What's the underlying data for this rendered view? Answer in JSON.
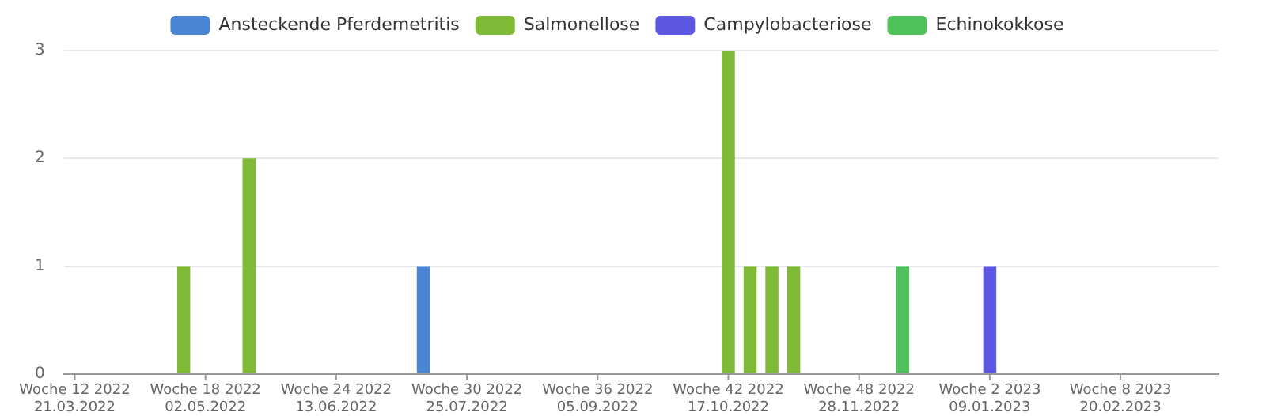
{
  "chart_data": {
    "type": "bar",
    "stacked": true,
    "legend": "top",
    "grid": "y",
    "categories": [
      "Woche 12 2022\n21.03.2022",
      null,
      null,
      null,
      null,
      null,
      "Woche 18 2022\n02.05.2022",
      null,
      null,
      null,
      null,
      null,
      "Woche 24 2022\n13.06.2022",
      null,
      null,
      null,
      null,
      null,
      "Woche 30 2022\n25.07.2022",
      null,
      null,
      null,
      null,
      null,
      "Woche 36 2022\n05.09.2022",
      null,
      null,
      null,
      null,
      null,
      "Woche 42 2022\n17.10.2022",
      null,
      null,
      null,
      null,
      null,
      "Woche 48 2022\n28.11.2022",
      null,
      null,
      null,
      null,
      null,
      "Woche 2 2023\n09.01.2023",
      null,
      null,
      null,
      null,
      null,
      "Woche 8 2023\n20.02.2023",
      null,
      null,
      null,
      null
    ],
    "ylim": [
      0,
      3
    ],
    "yticks": [
      0,
      1,
      2,
      3
    ],
    "series": [
      {
        "name": "Ansteckende Pferdemetritis",
        "color": "#4a86d4",
        "values": [
          null,
          null,
          null,
          null,
          null,
          null,
          null,
          null,
          null,
          null,
          null,
          null,
          null,
          null,
          null,
          null,
          1,
          null,
          null,
          null,
          null,
          null,
          null,
          null,
          null,
          null,
          null,
          null,
          null,
          null,
          null,
          null,
          null,
          null,
          null,
          null,
          null,
          null,
          null,
          null,
          null,
          null,
          null,
          null,
          null,
          null,
          null,
          null,
          null,
          null,
          null,
          null,
          null
        ]
      },
      {
        "name": "Salmonellose",
        "color": "#7fba36",
        "values": [
          null,
          null,
          null,
          null,
          null,
          1,
          null,
          null,
          2,
          null,
          null,
          null,
          null,
          null,
          null,
          null,
          null,
          null,
          null,
          null,
          null,
          null,
          null,
          null,
          null,
          null,
          null,
          null,
          null,
          null,
          3,
          1,
          1,
          1,
          null,
          null,
          null,
          null,
          null,
          null,
          null,
          null,
          null,
          null,
          null,
          null,
          null,
          null,
          null,
          null,
          null,
          null,
          null
        ]
      },
      {
        "name": "Campylobacteriose",
        "color": "#5b57e0",
        "values": [
          null,
          null,
          null,
          null,
          null,
          null,
          null,
          null,
          null,
          null,
          null,
          null,
          null,
          null,
          null,
          null,
          null,
          null,
          null,
          null,
          null,
          null,
          null,
          null,
          null,
          null,
          null,
          null,
          null,
          null,
          null,
          null,
          null,
          null,
          null,
          null,
          null,
          null,
          null,
          null,
          null,
          null,
          1,
          null,
          null,
          null,
          null,
          null,
          null,
          null,
          null,
          null,
          null
        ]
      },
      {
        "name": "Echinokokkose",
        "color": "#4fc15a",
        "values": [
          null,
          null,
          null,
          null,
          null,
          null,
          null,
          null,
          null,
          null,
          null,
          null,
          null,
          null,
          null,
          null,
          null,
          null,
          null,
          null,
          null,
          null,
          null,
          null,
          null,
          null,
          null,
          null,
          null,
          null,
          null,
          null,
          null,
          null,
          null,
          null,
          null,
          null,
          1,
          null,
          null,
          null,
          null,
          null,
          null,
          null,
          null,
          null,
          null,
          null,
          null,
          null,
          null
        ]
      }
    ]
  }
}
